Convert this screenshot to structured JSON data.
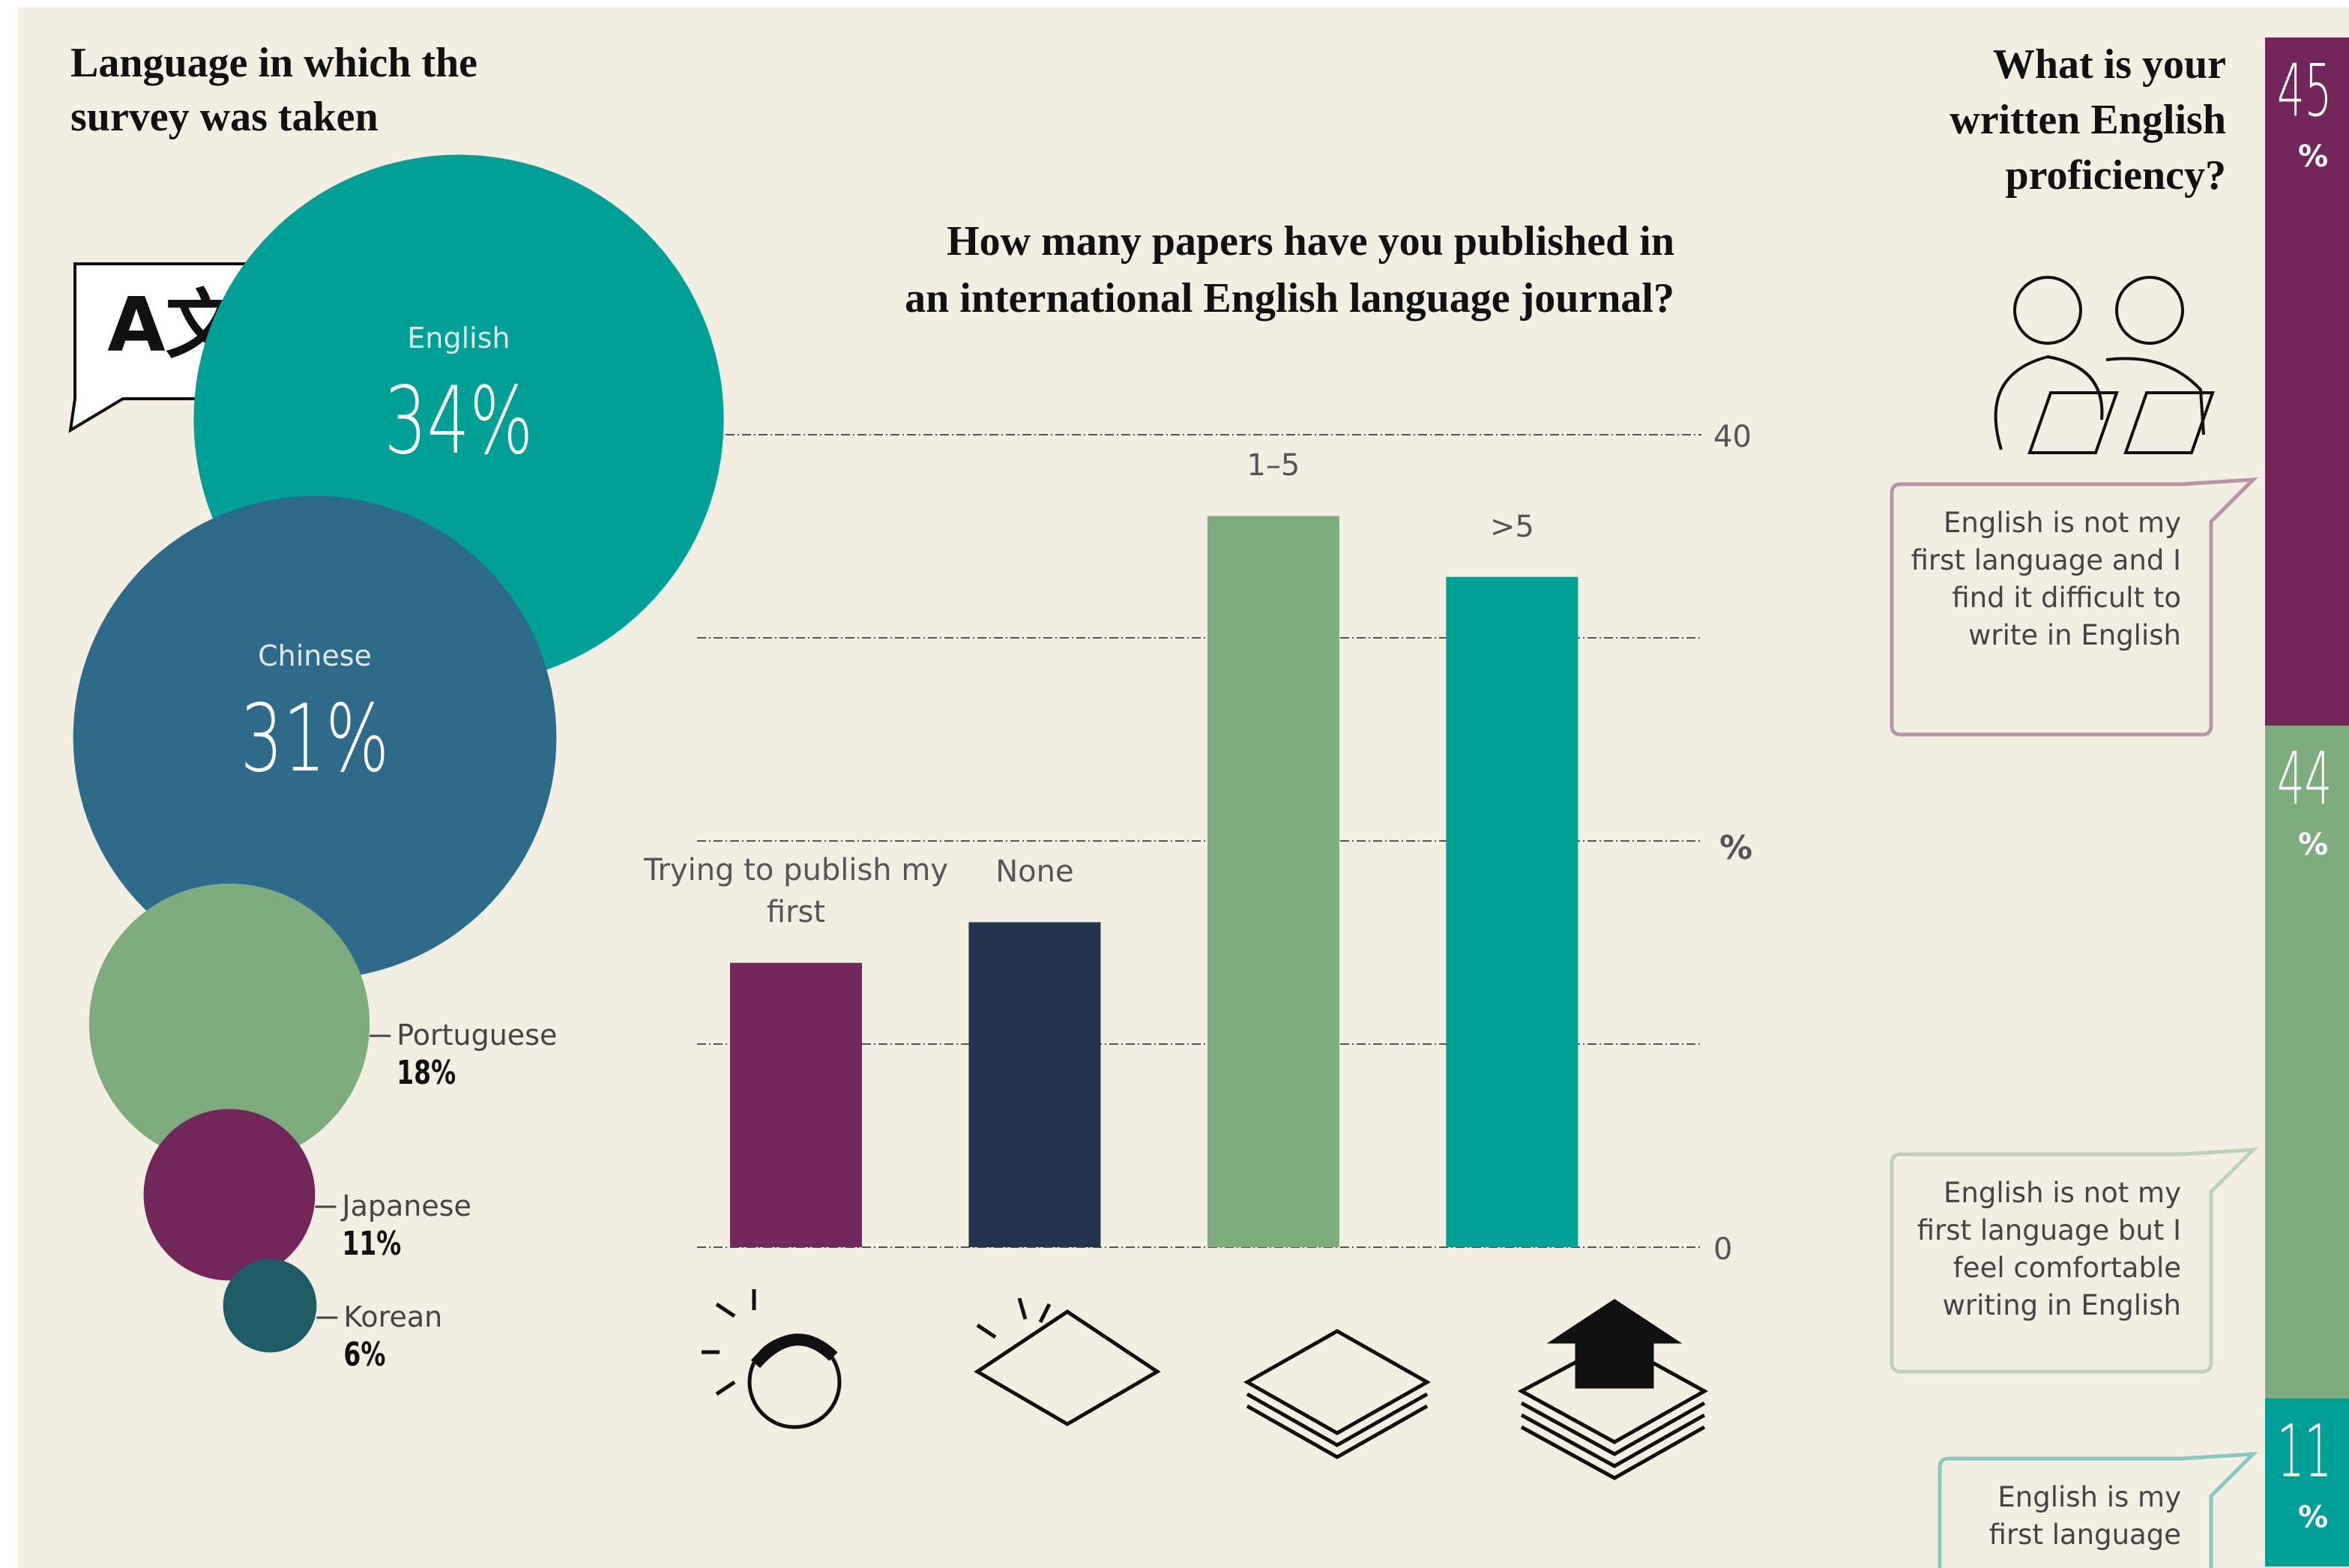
{
  "chart_data": [
    {
      "type": "bubble",
      "title": "Language in which the survey was taken",
      "icon_label": "A文",
      "categories": [
        "English",
        "Chinese",
        "Portuguese",
        "Japanese",
        "Korean"
      ],
      "values": [
        34,
        31,
        18,
        11,
        6
      ],
      "value_labels": [
        "34%",
        "31%",
        "18%",
        "11%",
        "6%"
      ],
      "colors": [
        "#00a096",
        "#2e6b8a",
        "#7fac7f",
        "#72265a",
        "#1e5c66"
      ]
    },
    {
      "type": "bar",
      "title": "How many papers have you published in an international English language journal?",
      "categories": [
        "Trying to publish my first",
        "None",
        "1–5",
        ">5"
      ],
      "values": [
        14,
        16,
        36,
        33
      ],
      "colors": [
        "#72265a",
        "#22344d",
        "#7fac7f",
        "#00a096"
      ],
      "ylabel": "%",
      "ylim": [
        0,
        40
      ],
      "yticks": [
        0,
        40
      ],
      "grid_lines": [
        0,
        10,
        20,
        30,
        40
      ]
    },
    {
      "type": "stacked_bar",
      "title": "What is your written English proficiency?",
      "unit": "%",
      "series": [
        {
          "name": "English is not my first language and I find it difficult to write in English",
          "color": "#72265a",
          "values": [
            45
          ]
        },
        {
          "name": "English is not my first language but I feel comfortable writing in English",
          "color": "#7fac7f",
          "values": [
            44
          ]
        },
        {
          "name": "English is my first language",
          "color": "#00a096",
          "values": [
            11
          ]
        }
      ]
    }
  ]
}
